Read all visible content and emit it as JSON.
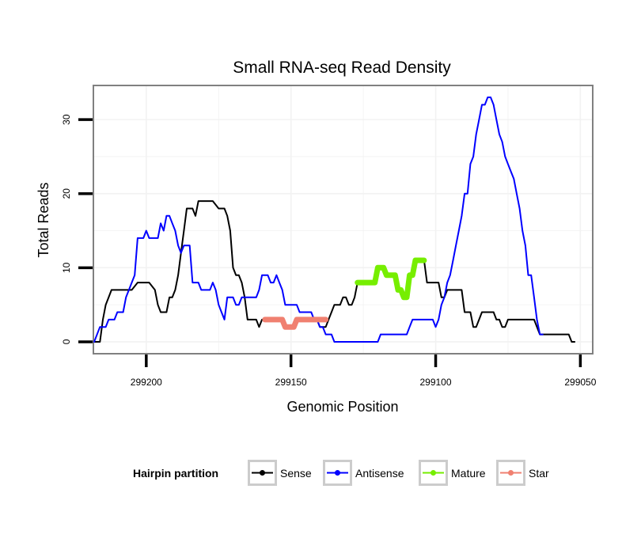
{
  "chart_data": {
    "type": "line",
    "title": "Small RNA-seq Read Density",
    "xlabel": "Genomic Position",
    "ylabel": "Total Reads",
    "xlim": [
      299218,
      299046
    ],
    "x_reversed": true,
    "ylim": [
      -1.5,
      34.5
    ],
    "xticks": [
      299200,
      299150,
      299100,
      299050
    ],
    "xtick_labels": [
      "299200",
      "299150",
      "299100",
      "299050"
    ],
    "yticks": [
      0,
      10,
      20,
      30
    ],
    "ytick_labels": [
      "0",
      "10",
      "20",
      "30"
    ],
    "grid": true,
    "legend": {
      "title": "Hairpin partition",
      "position": "bottom",
      "entries": [
        "Sense",
        "Antisense",
        "Mature",
        "Star"
      ]
    },
    "series": [
      {
        "name": "Sense",
        "color": "#000000",
        "points": [
          [
            299218,
            0
          ],
          [
            299216,
            0
          ],
          [
            299215,
            3
          ],
          [
            299214,
            5
          ],
          [
            299213,
            6
          ],
          [
            299212,
            7
          ],
          [
            299209,
            7
          ],
          [
            299205,
            7
          ],
          [
            299203,
            8
          ],
          [
            299199,
            8
          ],
          [
            299197,
            7
          ],
          [
            299196,
            5
          ],
          [
            299195,
            4
          ],
          [
            299193,
            4
          ],
          [
            299192,
            6
          ],
          [
            299191,
            6
          ],
          [
            299190,
            7
          ],
          [
            299189,
            9
          ],
          [
            299188,
            12
          ],
          [
            299187,
            15
          ],
          [
            299186,
            18
          ],
          [
            299184,
            18
          ],
          [
            299183,
            17
          ],
          [
            299182,
            19
          ],
          [
            299177,
            19
          ],
          [
            299175,
            18
          ],
          [
            299173,
            18
          ],
          [
            299172,
            17
          ],
          [
            299171,
            15
          ],
          [
            299170,
            10
          ],
          [
            299169,
            9
          ],
          [
            299168,
            9
          ],
          [
            299167,
            8
          ],
          [
            299166,
            6
          ],
          [
            299165,
            3
          ],
          [
            299162,
            3
          ],
          [
            299161,
            2
          ],
          [
            299160,
            3
          ],
          [
            299159,
            3
          ],
          [
            299153,
            3
          ],
          [
            299152,
            2
          ],
          [
            299149,
            2
          ],
          [
            299148,
            3
          ],
          [
            299141,
            3
          ],
          [
            299140,
            2
          ],
          [
            299138,
            2
          ],
          [
            299137,
            3
          ],
          [
            299136,
            4
          ],
          [
            299135,
            5
          ],
          [
            299133,
            5
          ],
          [
            299132,
            6
          ],
          [
            299131,
            6
          ],
          [
            299130,
            5
          ],
          [
            299129,
            5
          ],
          [
            299128,
            6
          ],
          [
            299127,
            8
          ],
          [
            299121,
            8
          ],
          [
            299120,
            10
          ],
          [
            299118,
            10
          ],
          [
            299117,
            9
          ],
          [
            299114,
            9
          ],
          [
            299113,
            7
          ],
          [
            299112,
            7
          ],
          [
            299111,
            6
          ],
          [
            299110,
            6
          ],
          [
            299109,
            9
          ],
          [
            299108,
            9
          ],
          [
            299107,
            11
          ],
          [
            299104,
            11
          ],
          [
            299103,
            8
          ],
          [
            299099,
            8
          ],
          [
            299098,
            6
          ],
          [
            299097,
            6
          ],
          [
            299096,
            7
          ],
          [
            299091,
            7
          ],
          [
            299090,
            4
          ],
          [
            299088,
            4
          ],
          [
            299087,
            2
          ],
          [
            299086,
            2
          ],
          [
            299085,
            3
          ],
          [
            299084,
            4
          ],
          [
            299080,
            4
          ],
          [
            299079,
            3
          ],
          [
            299078,
            3
          ],
          [
            299077,
            2
          ],
          [
            299076,
            2
          ],
          [
            299075,
            3
          ],
          [
            299066,
            3
          ],
          [
            299065,
            2
          ],
          [
            299064,
            1
          ],
          [
            299055,
            1
          ],
          [
            299054,
            1
          ],
          [
            299053,
            0
          ],
          [
            299052,
            0
          ]
        ]
      },
      {
        "name": "Antisense",
        "color": "#0000ff",
        "points": [
          [
            299218,
            0
          ],
          [
            299216,
            2
          ],
          [
            299214,
            2
          ],
          [
            299213,
            3
          ],
          [
            299211,
            3
          ],
          [
            299210,
            4
          ],
          [
            299208,
            4
          ],
          [
            299207,
            6
          ],
          [
            299206,
            7
          ],
          [
            299205,
            8
          ],
          [
            299204,
            9
          ],
          [
            299203,
            14
          ],
          [
            299201,
            14
          ],
          [
            299200,
            15
          ],
          [
            299199,
            14
          ],
          [
            299196,
            14
          ],
          [
            299195,
            16
          ],
          [
            299194,
            15
          ],
          [
            299193,
            17
          ],
          [
            299192,
            17
          ],
          [
            299191,
            16
          ],
          [
            299190,
            15
          ],
          [
            299189,
            13
          ],
          [
            299188,
            12
          ],
          [
            299187,
            13
          ],
          [
            299185,
            13
          ],
          [
            299184,
            8
          ],
          [
            299182,
            8
          ],
          [
            299181,
            7
          ],
          [
            299178,
            7
          ],
          [
            299177,
            8
          ],
          [
            299176,
            7
          ],
          [
            299175,
            5
          ],
          [
            299174,
            4
          ],
          [
            299173,
            3
          ],
          [
            299172,
            6
          ],
          [
            299170,
            6
          ],
          [
            299169,
            5
          ],
          [
            299168,
            5
          ],
          [
            299167,
            6
          ],
          [
            299162,
            6
          ],
          [
            299161,
            7
          ],
          [
            299160,
            9
          ],
          [
            299158,
            9
          ],
          [
            299157,
            8
          ],
          [
            299156,
            8
          ],
          [
            299155,
            9
          ],
          [
            299154,
            8
          ],
          [
            299153,
            7
          ],
          [
            299152,
            5
          ],
          [
            299148,
            5
          ],
          [
            299147,
            4
          ],
          [
            299143,
            4
          ],
          [
            299142,
            3
          ],
          [
            299141,
            3
          ],
          [
            299140,
            2
          ],
          [
            299139,
            2
          ],
          [
            299138,
            1
          ],
          [
            299136,
            1
          ],
          [
            299135,
            0
          ],
          [
            299120,
            0
          ],
          [
            299119,
            1
          ],
          [
            299110,
            1
          ],
          [
            299109,
            2
          ],
          [
            299108,
            3
          ],
          [
            299101,
            3
          ],
          [
            299100,
            2
          ],
          [
            299099,
            3
          ],
          [
            299098,
            5
          ],
          [
            299097,
            6
          ],
          [
            299096,
            8
          ],
          [
            299095,
            9
          ],
          [
            299094,
            11
          ],
          [
            299093,
            13
          ],
          [
            299092,
            15
          ],
          [
            299091,
            17
          ],
          [
            299090,
            20
          ],
          [
            299089,
            20
          ],
          [
            299088,
            24
          ],
          [
            299087,
            25
          ],
          [
            299086,
            28
          ],
          [
            299085,
            30
          ],
          [
            299084,
            32
          ],
          [
            299083,
            32
          ],
          [
            299082,
            33
          ],
          [
            299081,
            33
          ],
          [
            299080,
            32
          ],
          [
            299079,
            30
          ],
          [
            299078,
            28
          ],
          [
            299077,
            27
          ],
          [
            299076,
            25
          ],
          [
            299075,
            24
          ],
          [
            299074,
            23
          ],
          [
            299073,
            22
          ],
          [
            299072,
            20
          ],
          [
            299071,
            18
          ],
          [
            299070,
            15
          ],
          [
            299069,
            13
          ],
          [
            299068,
            9
          ],
          [
            299067,
            9
          ],
          [
            299066,
            6
          ],
          [
            299065,
            3
          ],
          [
            299064,
            1
          ],
          [
            299063,
            1
          ]
        ]
      },
      {
        "name": "Mature",
        "color": "#76ee00",
        "points": [
          [
            299127,
            8
          ],
          [
            299121,
            8
          ],
          [
            299120,
            10
          ],
          [
            299118,
            10
          ],
          [
            299117,
            9
          ],
          [
            299114,
            9
          ],
          [
            299113,
            7
          ],
          [
            299112,
            7
          ],
          [
            299111,
            6
          ],
          [
            299110,
            6
          ],
          [
            299109,
            9
          ],
          [
            299108,
            9
          ],
          [
            299107,
            11
          ],
          [
            299104,
            11
          ]
        ]
      },
      {
        "name": "Star",
        "color": "#f08070",
        "points": [
          [
            299159,
            3
          ],
          [
            299153,
            3
          ],
          [
            299152,
            2
          ],
          [
            299149,
            2
          ],
          [
            299148,
            3
          ],
          [
            299138,
            3
          ]
        ]
      }
    ]
  }
}
